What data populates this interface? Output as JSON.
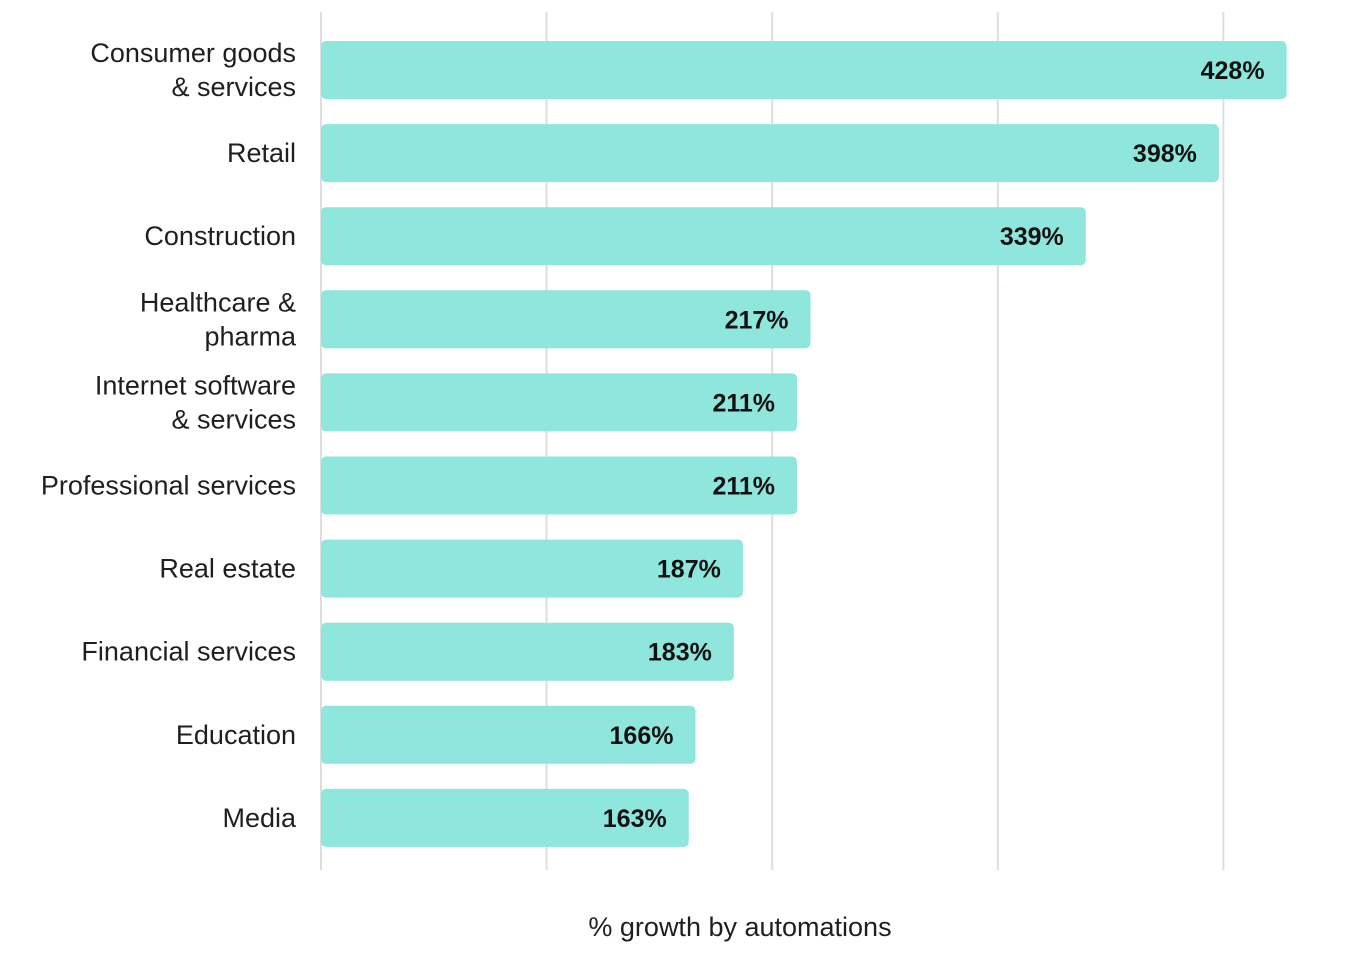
{
  "chart_data": {
    "type": "bar",
    "orientation": "horizontal",
    "categories": [
      [
        "Consumer goods",
        "& services"
      ],
      [
        "Retail"
      ],
      [
        "Construction"
      ],
      [
        "Healthcare &",
        "pharma"
      ],
      [
        "Internet software",
        "& services"
      ],
      [
        "Professional services"
      ],
      [
        "Real estate"
      ],
      [
        "Financial services"
      ],
      [
        "Education"
      ],
      [
        "Media"
      ]
    ],
    "values": [
      428,
      398,
      339,
      217,
      211,
      211,
      187,
      183,
      166,
      163
    ],
    "value_labels": [
      "428%",
      "398%",
      "339%",
      "217%",
      "211%",
      "211%",
      "187%",
      "183%",
      "166%",
      "163%"
    ],
    "xlabel": "% growth by automations",
    "xlim": [
      0,
      400
    ],
    "grid": "vertical",
    "legend": "none",
    "bar_color": "#8ee6dc"
  }
}
